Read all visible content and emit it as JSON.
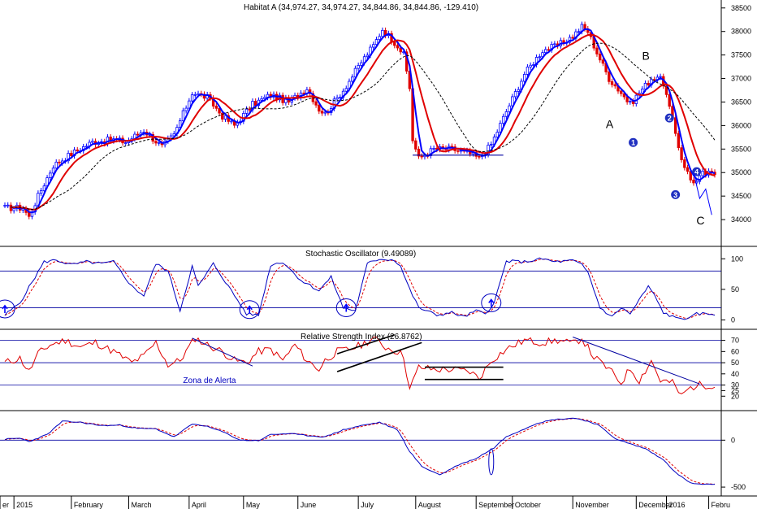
{
  "chart_data": [
    {
      "type": "candlestick",
      "title": "Habitat A (34,974.27, 34,974.27, 34,844.86, 34,844.86, -129.410)",
      "ylim": [
        33500,
        38600
      ],
      "y_ticks": [
        34000,
        34500,
        35000,
        35500,
        36000,
        36500,
        37000,
        37500,
        38000,
        38500
      ],
      "y_tick_labels": [
        "34000",
        "34500",
        "35000",
        "35500",
        "36000",
        "36500",
        "37000",
        "37500",
        "38000",
        "38500"
      ],
      "x_labels": [
        "er",
        "2015",
        "February",
        "March",
        "April",
        "May",
        "June",
        "July",
        "August",
        "September",
        "October",
        "November",
        "December",
        "2016",
        "Febru"
      ],
      "price_knots": [
        [
          0,
          34250
        ],
        [
          6,
          34250
        ],
        [
          8,
          34050
        ],
        [
          11,
          34500
        ],
        [
          16,
          35150
        ],
        [
          22,
          35400
        ],
        [
          29,
          35650
        ],
        [
          36,
          35700
        ],
        [
          40,
          35650
        ],
        [
          46,
          35900
        ],
        [
          52,
          35550
        ],
        [
          56,
          35800
        ],
        [
          62,
          36700
        ],
        [
          67,
          36600
        ],
        [
          72,
          36200
        ],
        [
          76,
          36000
        ],
        [
          82,
          36450
        ],
        [
          88,
          36650
        ],
        [
          94,
          36500
        ],
        [
          100,
          36800
        ],
        [
          104,
          36350
        ],
        [
          106,
          36250
        ],
        [
          112,
          36750
        ],
        [
          118,
          37350
        ],
        [
          122,
          37700
        ],
        [
          125,
          38050
        ],
        [
          130,
          37700
        ],
        [
          132,
          37500
        ],
        [
          134,
          36800
        ],
        [
          135,
          35700
        ],
        [
          137,
          35300
        ],
        [
          142,
          35500
        ],
        [
          148,
          35500
        ],
        [
          154,
          35400
        ],
        [
          157,
          35300
        ],
        [
          161,
          35600
        ],
        [
          166,
          36300
        ],
        [
          172,
          37100
        ],
        [
          178,
          37600
        ],
        [
          183,
          37700
        ],
        [
          188,
          37900
        ],
        [
          191,
          38100
        ],
        [
          193,
          38000
        ],
        [
          196,
          37550
        ],
        [
          200,
          37000
        ],
        [
          204,
          36700
        ],
        [
          207,
          36450
        ],
        [
          210,
          36700
        ],
        [
          214,
          37000
        ],
        [
          216,
          37050
        ],
        [
          218,
          36900
        ],
        [
          221,
          36100
        ],
        [
          224,
          35300
        ],
        [
          227,
          34850
        ],
        [
          229,
          34800
        ],
        [
          231,
          34974
        ]
      ],
      "moving_averages": [
        {
          "color": "#0000ff",
          "period": 4,
          "style": "solid"
        },
        {
          "color": "#e00000",
          "period": 10,
          "style": "solid"
        },
        {
          "color": "#000000",
          "period": 22,
          "style": "dashed"
        }
      ],
      "annotations": [
        {
          "type": "text",
          "text": "A",
          "x": 200,
          "y": 35950
        },
        {
          "type": "text",
          "text": "B",
          "x": 212,
          "y": 37400
        },
        {
          "type": "text",
          "text": "C",
          "x": 230,
          "y": 33900
        },
        {
          "type": "circle-label",
          "text": "1",
          "x": 208,
          "y": 35640
        },
        {
          "type": "circle-label",
          "text": "2",
          "x": 220,
          "y": 36160
        },
        {
          "type": "circle-label",
          "text": "3",
          "x": 222,
          "y": 34530
        },
        {
          "type": "circle-label",
          "text": "4",
          "x": 229,
          "y": 35020
        },
        {
          "type": "hline",
          "x0": 135,
          "x1": 165,
          "y": 35370
        },
        {
          "type": "arrow-line",
          "points": [
            [
              228,
              35000
            ],
            [
              230,
              34450
            ],
            [
              232,
              34650
            ],
            [
              234,
              34100
            ]
          ]
        }
      ]
    },
    {
      "type": "line",
      "title": "Stochastic Oscillator (9.49089)",
      "ylim": [
        -10,
        115
      ],
      "y_ticks": [
        0,
        50,
        100
      ],
      "y_tick_labels": [
        "0",
        "50",
        "100"
      ],
      "hlines": [
        20,
        80
      ],
      "knots": [
        [
          0,
          8
        ],
        [
          5,
          28
        ],
        [
          9,
          62
        ],
        [
          13,
          95
        ],
        [
          17,
          98
        ],
        [
          22,
          90
        ],
        [
          27,
          95
        ],
        [
          32,
          92
        ],
        [
          36,
          95
        ],
        [
          42,
          55
        ],
        [
          46,
          40
        ],
        [
          50,
          92
        ],
        [
          54,
          80
        ],
        [
          58,
          15
        ],
        [
          62,
          88
        ],
        [
          64,
          55
        ],
        [
          69,
          92
        ],
        [
          72,
          70
        ],
        [
          80,
          10
        ],
        [
          84,
          8
        ],
        [
          88,
          90
        ],
        [
          92,
          95
        ],
        [
          98,
          65
        ],
        [
          104,
          48
        ],
        [
          108,
          70
        ],
        [
          112,
          20
        ],
        [
          116,
          15
        ],
        [
          120,
          92
        ],
        [
          124,
          100
        ],
        [
          129,
          98
        ],
        [
          131,
          88
        ],
        [
          134,
          50
        ],
        [
          137,
          20
        ],
        [
          143,
          8
        ],
        [
          148,
          12
        ],
        [
          152,
          5
        ],
        [
          156,
          15
        ],
        [
          159,
          10
        ],
        [
          162,
          28
        ],
        [
          166,
          96
        ],
        [
          172,
          95
        ],
        [
          178,
          100
        ],
        [
          182,
          95
        ],
        [
          188,
          97
        ],
        [
          191,
          90
        ],
        [
          193,
          78
        ],
        [
          197,
          20
        ],
        [
          201,
          5
        ],
        [
          204,
          20
        ],
        [
          207,
          10
        ],
        [
          213,
          55
        ],
        [
          215,
          40
        ],
        [
          218,
          12
        ],
        [
          222,
          3
        ],
        [
          227,
          3
        ],
        [
          229,
          10
        ]
      ],
      "signal_style": "dashed",
      "circles": [
        [
          0,
          18
        ],
        [
          81,
          17
        ],
        [
          113,
          20
        ],
        [
          161,
          28
        ]
      ]
    },
    {
      "type": "line",
      "title": "Relative Strength Index (26.8762)",
      "ylim": [
        10,
        77
      ],
      "y_ticks": [
        20,
        25,
        30,
        40,
        50,
        60,
        70
      ],
      "y_tick_labels": [
        "20",
        "25",
        "30",
        "40",
        "50",
        "60",
        "70"
      ],
      "hlines": [
        30,
        50,
        70
      ],
      "knots": [
        [
          0,
          50
        ],
        [
          5,
          54
        ],
        [
          8,
          42
        ],
        [
          11,
          58
        ],
        [
          15,
          66
        ],
        [
          20,
          70
        ],
        [
          25,
          64
        ],
        [
          30,
          68
        ],
        [
          36,
          60
        ],
        [
          42,
          50
        ],
        [
          46,
          56
        ],
        [
          50,
          68
        ],
        [
          54,
          48
        ],
        [
          58,
          52
        ],
        [
          63,
          72
        ],
        [
          67,
          66
        ],
        [
          72,
          60
        ],
        [
          76,
          52
        ],
        [
          80,
          50
        ],
        [
          84,
          60
        ],
        [
          88,
          62
        ],
        [
          92,
          52
        ],
        [
          96,
          66
        ],
        [
          100,
          52
        ],
        [
          104,
          44
        ],
        [
          106,
          52
        ],
        [
          110,
          60
        ],
        [
          114,
          62
        ],
        [
          118,
          66
        ],
        [
          122,
          72
        ],
        [
          126,
          64
        ],
        [
          130,
          60
        ],
        [
          132,
          56
        ],
        [
          134,
          26
        ],
        [
          137,
          46
        ],
        [
          142,
          44
        ],
        [
          148,
          44
        ],
        [
          154,
          42
        ],
        [
          157,
          36
        ],
        [
          161,
          52
        ],
        [
          166,
          62
        ],
        [
          172,
          70
        ],
        [
          178,
          68
        ],
        [
          183,
          70
        ],
        [
          188,
          67
        ],
        [
          191,
          72
        ],
        [
          195,
          55
        ],
        [
          200,
          44
        ],
        [
          204,
          32
        ],
        [
          207,
          45
        ],
        [
          210,
          34
        ],
        [
          214,
          52
        ],
        [
          217,
          34
        ],
        [
          221,
          32
        ],
        [
          224,
          20
        ],
        [
          226,
          26
        ],
        [
          229,
          30
        ]
      ],
      "annotations": [
        {
          "type": "text",
          "text": "Zona de Alerta",
          "x": 59,
          "y": 32
        },
        {
          "type": "line",
          "x0": 62,
          "y0": 72,
          "x1": 82,
          "y1": 47
        },
        {
          "type": "line",
          "x0": 110,
          "y0": 58,
          "x1": 129,
          "y1": 75
        },
        {
          "type": "line",
          "x0": 110,
          "y0": 42,
          "x1": 138,
          "y1": 68
        },
        {
          "type": "line",
          "x0": 139,
          "y0": 46,
          "x1": 165,
          "y1": 46
        },
        {
          "type": "line",
          "x0": 139,
          "y0": 35,
          "x1": 165,
          "y1": 35
        },
        {
          "type": "line",
          "x0": 188,
          "y0": 73,
          "x1": 230,
          "y1": 31
        }
      ]
    },
    {
      "type": "line",
      "title": "",
      "ylim": [
        -560,
        280
      ],
      "y_ticks": [
        -500,
        0
      ],
      "y_tick_labels": [
        "-500",
        "0"
      ],
      "hlines": [
        0
      ],
      "knots": [
        [
          0,
          10
        ],
        [
          5,
          20
        ],
        [
          8,
          -15
        ],
        [
          14,
          60
        ],
        [
          19,
          200
        ],
        [
          25,
          190
        ],
        [
          32,
          155
        ],
        [
          38,
          160
        ],
        [
          44,
          125
        ],
        [
          50,
          120
        ],
        [
          56,
          35
        ],
        [
          62,
          170
        ],
        [
          66,
          155
        ],
        [
          72,
          90
        ],
        [
          78,
          0
        ],
        [
          84,
          -5
        ],
        [
          88,
          60
        ],
        [
          94,
          70
        ],
        [
          100,
          50
        ],
        [
          106,
          35
        ],
        [
          112,
          110
        ],
        [
          118,
          155
        ],
        [
          124,
          190
        ],
        [
          130,
          110
        ],
        [
          134,
          -120
        ],
        [
          138,
          -280
        ],
        [
          144,
          -370
        ],
        [
          150,
          -265
        ],
        [
          156,
          -195
        ],
        [
          162,
          -80
        ],
        [
          166,
          40
        ],
        [
          172,
          120
        ],
        [
          176,
          180
        ],
        [
          182,
          220
        ],
        [
          188,
          235
        ],
        [
          191,
          220
        ],
        [
          196,
          170
        ],
        [
          202,
          20
        ],
        [
          206,
          -30
        ],
        [
          212,
          -90
        ],
        [
          218,
          -210
        ],
        [
          222,
          -340
        ],
        [
          226,
          -440
        ],
        [
          229,
          -470
        ]
      ],
      "signal_style": "dashed",
      "circles": [
        [
          161,
          -230
        ]
      ]
    }
  ]
}
